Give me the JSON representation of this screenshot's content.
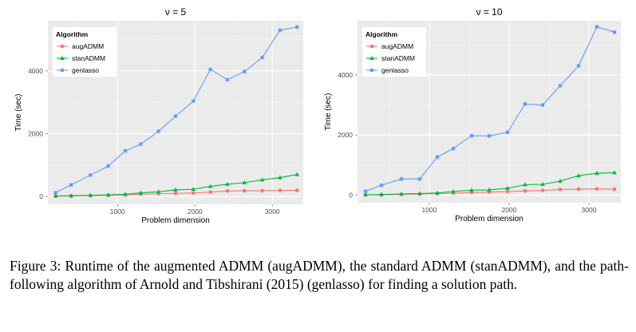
{
  "caption": "Figure 3: Runtime of the augmented ADMM (augADMM), the standard ADMM (stanADMM), and the path-following algorithm of Arnold and Tibshirani (2015) (genlasso) for finding a solution path.",
  "chart_data": [
    {
      "type": "line",
      "title": "ν = 5",
      "xlabel": "Problem dimension",
      "ylabel": "Time (sec)",
      "xlim": [
        100,
        3400
      ],
      "ylim": [
        -250,
        5600
      ],
      "xticks": [
        1000,
        2000,
        3000
      ],
      "yticks": [
        0,
        2000,
        4000
      ],
      "grid": true,
      "legend_title": "Algorithm",
      "legend_position": "top-left",
      "x": [
        200,
        400,
        650,
        880,
        1100,
        1300,
        1530,
        1750,
        1980,
        2200,
        2420,
        2640,
        2870,
        3100,
        3320
      ],
      "series": [
        {
          "name": "augADMM",
          "color": "#F8766D",
          "marker": "circle",
          "values": [
            10,
            15,
            25,
            35,
            50,
            70,
            90,
            100,
            110,
            140,
            175,
            180,
            185,
            190,
            195
          ]
        },
        {
          "name": "stanADMM",
          "color": "#00BA38",
          "marker": "triangle",
          "values": [
            15,
            25,
            35,
            50,
            70,
            115,
            150,
            210,
            230,
            320,
            390,
            440,
            530,
            600,
            700
          ]
        },
        {
          "name": "genlasso",
          "color": "#619CFF",
          "marker": "square",
          "values": [
            120,
            370,
            680,
            970,
            1450,
            1670,
            2080,
            2560,
            3040,
            4050,
            3720,
            3980,
            4430,
            5300,
            5400
          ]
        }
      ]
    },
    {
      "type": "line",
      "title": "ν = 10",
      "xlabel": "Problem dimension",
      "ylabel": "Time (sec)",
      "xlim": [
        100,
        3400
      ],
      "ylim": [
        -250,
        5800
      ],
      "xticks": [
        1000,
        2000,
        3000
      ],
      "yticks": [
        0,
        2000,
        4000
      ],
      "grid": true,
      "legend_title": "Algorithm",
      "legend_position": "top-left",
      "x": [
        200,
        400,
        650,
        880,
        1100,
        1300,
        1530,
        1750,
        1980,
        2200,
        2420,
        2640,
        2870,
        3100,
        3320
      ],
      "series": [
        {
          "name": "augADMM",
          "color": "#F8766D",
          "marker": "circle",
          "values": [
            10,
            15,
            25,
            35,
            50,
            70,
            90,
            100,
            120,
            140,
            160,
            190,
            200,
            210,
            200
          ]
        },
        {
          "name": "stanADMM",
          "color": "#00BA38",
          "marker": "triangle",
          "values": [
            15,
            25,
            40,
            55,
            75,
            125,
            165,
            175,
            230,
            350,
            360,
            470,
            650,
            730,
            750
          ]
        },
        {
          "name": "genlasso",
          "color": "#619CFF",
          "marker": "square",
          "values": [
            130,
            330,
            540,
            540,
            1270,
            1550,
            1980,
            1970,
            2090,
            3030,
            3000,
            3640,
            4300,
            5600,
            5420
          ]
        }
      ]
    }
  ]
}
